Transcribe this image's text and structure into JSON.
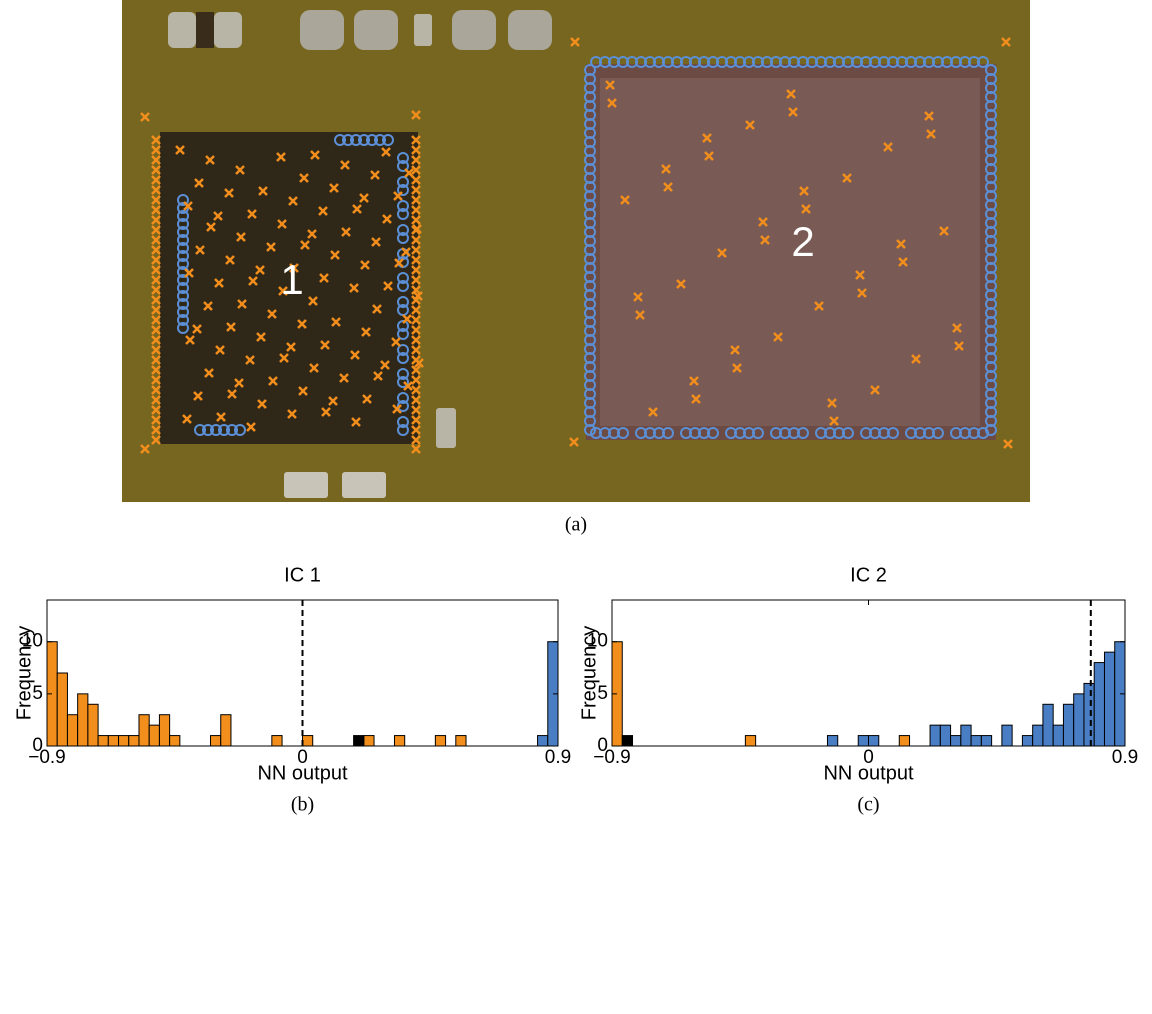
{
  "photo": {
    "labels": [
      "1",
      "2"
    ],
    "caption": "(a)"
  },
  "chart_data": [
    {
      "type": "histogram",
      "title": "IC 1",
      "xlabel": "NN output",
      "ylabel": "Frequency",
      "caption": "(b)",
      "bins": [
        -0.9,
        -0.864,
        -0.828,
        -0.792,
        -0.756,
        -0.72,
        -0.684,
        -0.648,
        -0.612,
        -0.576,
        -0.54,
        -0.504,
        -0.468,
        -0.432,
        -0.396,
        -0.36,
        -0.324,
        -0.288,
        -0.252,
        -0.216,
        -0.18,
        -0.144,
        -0.108,
        -0.072,
        -0.036,
        0,
        0.036,
        0.072,
        0.108,
        0.144,
        0.18,
        0.216,
        0.252,
        0.288,
        0.324,
        0.36,
        0.396,
        0.432,
        0.468,
        0.504,
        0.54,
        0.576,
        0.612,
        0.648,
        0.684,
        0.72,
        0.756,
        0.792,
        0.828,
        0.864,
        0.9
      ],
      "series": [
        {
          "color": "#f28e1c",
          "values": [
            10,
            7,
            3,
            5,
            4,
            1,
            1,
            1,
            1,
            3,
            2,
            3,
            1,
            0,
            0,
            0,
            1,
            3,
            0,
            0,
            0,
            0,
            1,
            0,
            0,
            1,
            0,
            0,
            0,
            0,
            0,
            1,
            0,
            0,
            1,
            0,
            0,
            0,
            1,
            0,
            1,
            0,
            0,
            0,
            0,
            0,
            0,
            0,
            0,
            0
          ]
        },
        {
          "color": "#000000",
          "values": [
            0,
            0,
            0,
            0,
            0,
            0,
            0,
            0,
            0,
            0,
            0,
            0,
            0,
            0,
            0,
            0,
            0,
            0,
            0,
            0,
            0,
            0,
            0,
            0,
            0,
            0,
            0,
            0,
            0,
            0,
            1,
            0,
            0,
            0,
            0,
            0,
            0,
            0,
            0,
            0,
            0,
            0,
            0,
            0,
            0,
            0,
            0,
            0,
            0,
            0
          ]
        },
        {
          "color": "#4a7ec4",
          "values": [
            0,
            0,
            0,
            0,
            0,
            0,
            0,
            0,
            0,
            0,
            0,
            0,
            0,
            0,
            0,
            0,
            0,
            0,
            0,
            0,
            0,
            0,
            0,
            0,
            0,
            0,
            0,
            0,
            0,
            0,
            0,
            0,
            0,
            0,
            0,
            0,
            0,
            0,
            0,
            0,
            0,
            0,
            0,
            0,
            0,
            0,
            0,
            0,
            1,
            10
          ]
        }
      ],
      "threshold": 0,
      "xlim": [
        -0.9,
        0.9
      ],
      "xticks": [
        {
          "value": -0.9,
          "label": "−0.9"
        },
        0,
        0.9
      ],
      "ylim": [
        0,
        14
      ],
      "yticks": [
        0,
        5,
        10
      ]
    },
    {
      "type": "histogram",
      "title": "IC 2",
      "xlabel": "NN output",
      "ylabel": "Frequency",
      "caption": "(c)",
      "bins": [
        -0.9,
        -0.864,
        -0.828,
        -0.792,
        -0.756,
        -0.72,
        -0.684,
        -0.648,
        -0.612,
        -0.576,
        -0.54,
        -0.504,
        -0.468,
        -0.432,
        -0.396,
        -0.36,
        -0.324,
        -0.288,
        -0.252,
        -0.216,
        -0.18,
        -0.144,
        -0.108,
        -0.072,
        -0.036,
        0,
        0.036,
        0.072,
        0.108,
        0.144,
        0.18,
        0.216,
        0.252,
        0.288,
        0.324,
        0.36,
        0.396,
        0.432,
        0.468,
        0.504,
        0.54,
        0.576,
        0.612,
        0.648,
        0.684,
        0.72,
        0.756,
        0.792,
        0.828,
        0.864,
        0.9
      ],
      "series": [
        {
          "color": "#f28e1c",
          "values": [
            10,
            0,
            0,
            0,
            0,
            0,
            0,
            0,
            0,
            0,
            0,
            0,
            0,
            1,
            0,
            0,
            0,
            0,
            0,
            0,
            0,
            0,
            0,
            0,
            0,
            0,
            0,
            0,
            1,
            0,
            0,
            0,
            0,
            0,
            0,
            0,
            0,
            0,
            0,
            0,
            0,
            0,
            0,
            0,
            0,
            0,
            0,
            0,
            0,
            0
          ]
        },
        {
          "color": "#000000",
          "values": [
            0,
            1,
            0,
            0,
            0,
            0,
            0,
            0,
            0,
            0,
            0,
            0,
            0,
            0,
            0,
            0,
            0,
            0,
            0,
            0,
            0,
            0,
            0,
            0,
            0,
            0,
            0,
            0,
            0,
            0,
            0,
            0,
            0,
            0,
            0,
            0,
            0,
            0,
            0,
            0,
            0,
            0,
            0,
            0,
            0,
            0,
            0,
            0,
            0,
            0
          ]
        },
        {
          "color": "#4a7ec4",
          "values": [
            0,
            0,
            0,
            0,
            0,
            0,
            0,
            0,
            0,
            0,
            0,
            0,
            0,
            0,
            0,
            0,
            0,
            0,
            0,
            0,
            0,
            1,
            0,
            0,
            1,
            1,
            0,
            0,
            0,
            0,
            0,
            2,
            2,
            1,
            2,
            1,
            1,
            0,
            2,
            0,
            1,
            2,
            4,
            2,
            4,
            5,
            6,
            8,
            9,
            10
          ]
        }
      ],
      "threshold": 0.78,
      "xlim": [
        -0.9,
        0.9
      ],
      "xticks": [
        {
          "value": -0.9,
          "label": "−0.9"
        },
        0,
        0.9
      ],
      "ylim": [
        0,
        14
      ],
      "yticks": [
        0,
        5,
        10
      ]
    }
  ]
}
